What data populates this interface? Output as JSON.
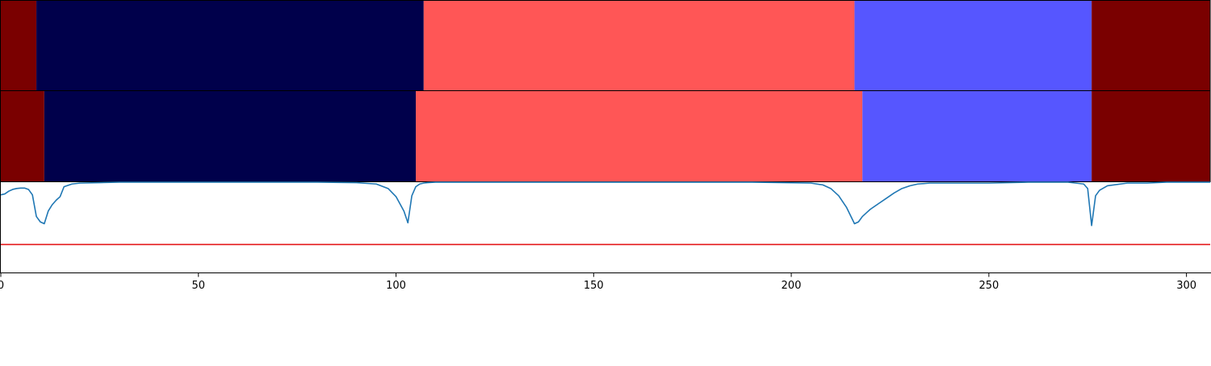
{
  "chart_data": [
    {
      "type": "heatmap",
      "panel": "top-segmentation-bar",
      "xlim": [
        0,
        306
      ],
      "segments": [
        {
          "start": 0,
          "end": 9,
          "color": "#7a0000"
        },
        {
          "start": 9,
          "end": 107,
          "color": "#00004b"
        },
        {
          "start": 107,
          "end": 216,
          "color": "#ff5656"
        },
        {
          "start": 216,
          "end": 276,
          "color": "#5656ff"
        },
        {
          "start": 276,
          "end": 306,
          "color": "#7a0000"
        }
      ]
    },
    {
      "type": "heatmap",
      "panel": "middle-segmentation-bar",
      "xlim": [
        0,
        306
      ],
      "segments": [
        {
          "start": 0,
          "end": 11,
          "color": "#7a0000"
        },
        {
          "start": 11,
          "end": 105,
          "color": "#00004b"
        },
        {
          "start": 105,
          "end": 218,
          "color": "#ff5656"
        },
        {
          "start": 218,
          "end": 276,
          "color": "#5656ff"
        },
        {
          "start": 276,
          "end": 306,
          "color": "#7a0000"
        }
      ]
    },
    {
      "type": "line",
      "panel": "bottom-score-plot",
      "xlim": [
        0,
        306
      ],
      "ylim": [
        0,
        1
      ],
      "grid": false,
      "series": [
        {
          "color": "#1f77b4",
          "x": [
            0,
            1,
            2,
            3,
            4,
            5,
            6,
            7,
            8,
            9,
            10,
            11,
            12,
            13,
            14,
            15,
            16,
            18,
            20,
            25,
            30,
            40,
            60,
            80,
            90,
            95,
            98,
            100,
            102,
            103,
            104,
            105,
            106,
            107,
            108,
            110,
            115,
            130,
            160,
            190,
            205,
            208,
            210,
            212,
            214,
            216,
            217,
            218,
            219,
            220,
            222,
            224,
            226,
            228,
            230,
            232,
            235,
            240,
            250,
            260,
            270,
            274,
            275,
            276,
            277,
            278,
            280,
            285,
            290,
            295,
            300,
            306
          ],
          "y": [
            0.86,
            0.87,
            0.9,
            0.92,
            0.93,
            0.935,
            0.935,
            0.92,
            0.86,
            0.62,
            0.56,
            0.54,
            0.68,
            0.75,
            0.8,
            0.84,
            0.95,
            0.98,
            0.99,
            0.995,
            1.0,
            1.0,
            1.0,
            1.0,
            0.995,
            0.98,
            0.93,
            0.84,
            0.68,
            0.55,
            0.85,
            0.95,
            0.98,
            0.99,
            0.995,
            1.0,
            1.0,
            1.0,
            1.0,
            1.0,
            0.99,
            0.97,
            0.93,
            0.85,
            0.72,
            0.54,
            0.56,
            0.62,
            0.66,
            0.7,
            0.76,
            0.82,
            0.88,
            0.93,
            0.96,
            0.98,
            0.99,
            0.99,
            0.99,
            1.0,
            1.0,
            0.98,
            0.93,
            0.52,
            0.85,
            0.91,
            0.96,
            0.99,
            0.99,
            1.0,
            1.0,
            1.0
          ]
        },
        {
          "color": "#e41a1c",
          "x": [
            0,
            306
          ],
          "y": [
            0.31,
            0.31
          ]
        }
      ],
      "x_ticks": [
        {
          "value": 0,
          "label": "0"
        },
        {
          "value": 50,
          "label": "50"
        },
        {
          "value": 100,
          "label": "100"
        },
        {
          "value": 150,
          "label": "150"
        },
        {
          "value": 200,
          "label": "200"
        },
        {
          "value": 250,
          "label": "250"
        },
        {
          "value": 300,
          "label": "300"
        }
      ]
    }
  ]
}
